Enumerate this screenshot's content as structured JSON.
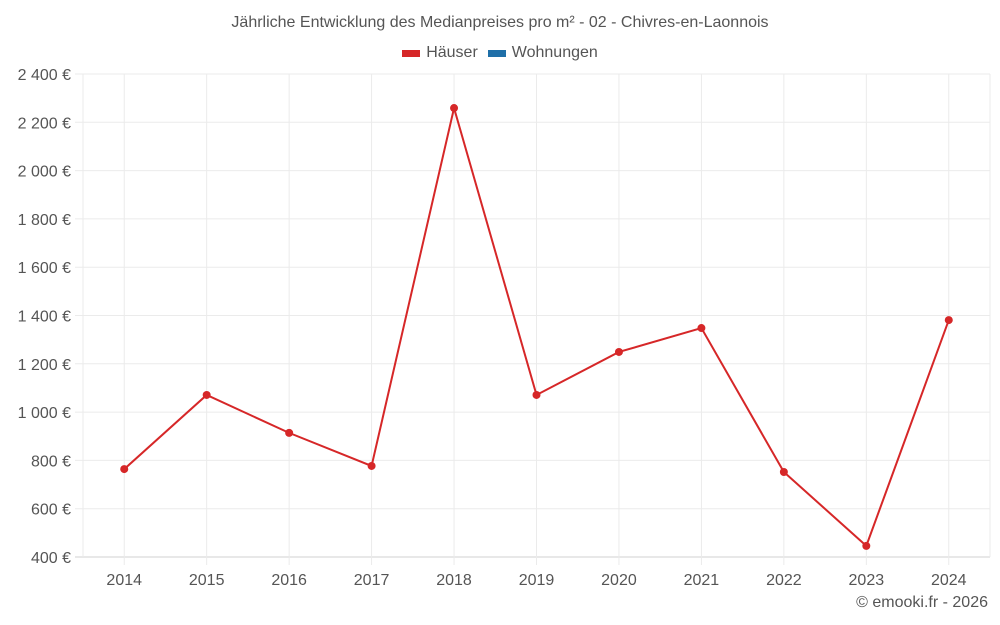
{
  "chart_data": {
    "type": "line",
    "title": "Jährliche Entwicklung des Medianpreises pro m² - 02 - Chivres-en-Laonnois",
    "xlabel": "",
    "ylabel": "",
    "categories": [
      "2014",
      "2015",
      "2016",
      "2017",
      "2018",
      "2019",
      "2020",
      "2021",
      "2022",
      "2023",
      "2024"
    ],
    "series": [
      {
        "name": "Häuser",
        "color": "#d62728",
        "values": [
          764,
          1071,
          914,
          777,
          2259,
          1071,
          1249,
          1348,
          752,
          446,
          1381
        ]
      },
      {
        "name": "Wohnungen",
        "color": "#1f6fa8",
        "values": []
      }
    ],
    "ylim": [
      400,
      2400
    ],
    "yticks": [
      400,
      600,
      800,
      1000,
      1200,
      1400,
      1600,
      1800,
      2000,
      2200,
      2400
    ],
    "ytick_labels": [
      "400 €",
      "600 €",
      "800 €",
      "1 000 €",
      "1 200 €",
      "1 400 €",
      "1 600 €",
      "1 800 €",
      "2 000 €",
      "2 200 €",
      "2 400 €"
    ],
    "grid": true,
    "legend_position": "top"
  },
  "legend": [
    {
      "label": "Häuser",
      "color": "#d62728"
    },
    {
      "label": "Wohnungen",
      "color": "#1f6fa8"
    }
  ],
  "credit": "© emooki.fr - 2026"
}
